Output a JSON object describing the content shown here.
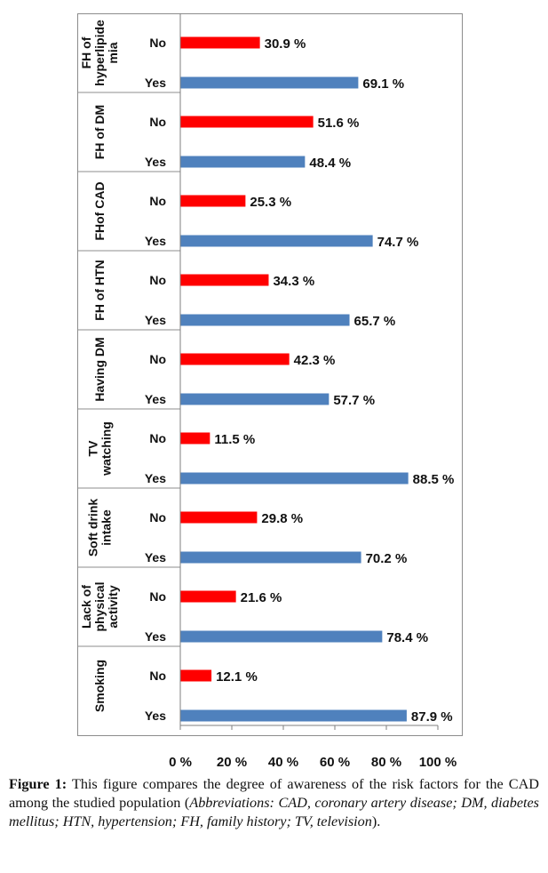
{
  "chart_data": {
    "type": "bar",
    "orientation": "horizontal",
    "groups": [
      {
        "label": "FH of hyperlipide mia",
        "lines": [
          "FH of",
          "hyperlipide",
          "mia"
        ],
        "bars": [
          {
            "category": "No",
            "value": 30.9,
            "label": "30.9 %"
          },
          {
            "category": "Yes",
            "value": 69.1,
            "label": "69.1 %"
          }
        ]
      },
      {
        "label": "FH of DM",
        "lines": [
          "FH of DM"
        ],
        "bars": [
          {
            "category": "No",
            "value": 51.6,
            "label": "51.6 %"
          },
          {
            "category": "Yes",
            "value": 48.4,
            "label": "48.4 %"
          }
        ]
      },
      {
        "label": "FHof CAD",
        "lines": [
          "FHof CAD"
        ],
        "bars": [
          {
            "category": "No",
            "value": 25.3,
            "label": "25.3 %"
          },
          {
            "category": "Yes",
            "value": 74.7,
            "label": "74.7 %"
          }
        ]
      },
      {
        "label": "FH of HTN",
        "lines": [
          "FH of HTN"
        ],
        "bars": [
          {
            "category": "No",
            "value": 34.3,
            "label": "34.3 %"
          },
          {
            "category": "Yes",
            "value": 65.7,
            "label": "65.7 %"
          }
        ]
      },
      {
        "label": "Having DM",
        "lines": [
          "Having DM"
        ],
        "bars": [
          {
            "category": "No",
            "value": 42.3,
            "label": "42.3 %"
          },
          {
            "category": "Yes",
            "value": 57.7,
            "label": "57.7 %"
          }
        ]
      },
      {
        "label": "TV watching",
        "lines": [
          "TV",
          "watching"
        ],
        "bars": [
          {
            "category": "No",
            "value": 11.5,
            "label": "11.5 %"
          },
          {
            "category": "Yes",
            "value": 88.5,
            "label": "88.5 %"
          }
        ]
      },
      {
        "label": "Soft drink intake",
        "lines": [
          "Soft drink",
          "intake"
        ],
        "bars": [
          {
            "category": "No",
            "value": 29.8,
            "label": "29.8 %"
          },
          {
            "category": "Yes",
            "value": 70.2,
            "label": "70.2 %"
          }
        ]
      },
      {
        "label": "Lack of physical activity",
        "lines": [
          "Lack of",
          "physical",
          "activity"
        ],
        "bars": [
          {
            "category": "No",
            "value": 21.6,
            "label": "21.6 %"
          },
          {
            "category": "Yes",
            "value": 78.4,
            "label": "78.4 %"
          }
        ]
      },
      {
        "label": "Smoking",
        "lines": [
          "Smoking"
        ],
        "bars": [
          {
            "category": "No",
            "value": 12.1,
            "label": "12.1 %"
          },
          {
            "category": "Yes",
            "value": 87.9,
            "label": "87.9 %"
          }
        ]
      }
    ],
    "x_ticks": [
      "0 %",
      "20 %",
      "40 %",
      "60 %",
      "80 %",
      "100 %"
    ],
    "xlim": [
      0,
      100
    ],
    "grid": false,
    "legend": "none",
    "colors": {
      "No": "#ff0000",
      "Yes": "#4f81bd"
    },
    "title": "",
    "xlabel": "",
    "ylabel": ""
  },
  "caption": {
    "lead": "Figure 1:",
    "text": "This figure compares the degree of awareness of the risk factors for the CAD among the studied population (",
    "abbreviations": "Abbreviations: CAD, coronary artery disease; DM, diabetes mellitus; HTN, hypertension; FH, family history; TV, television",
    "end": ")."
  }
}
